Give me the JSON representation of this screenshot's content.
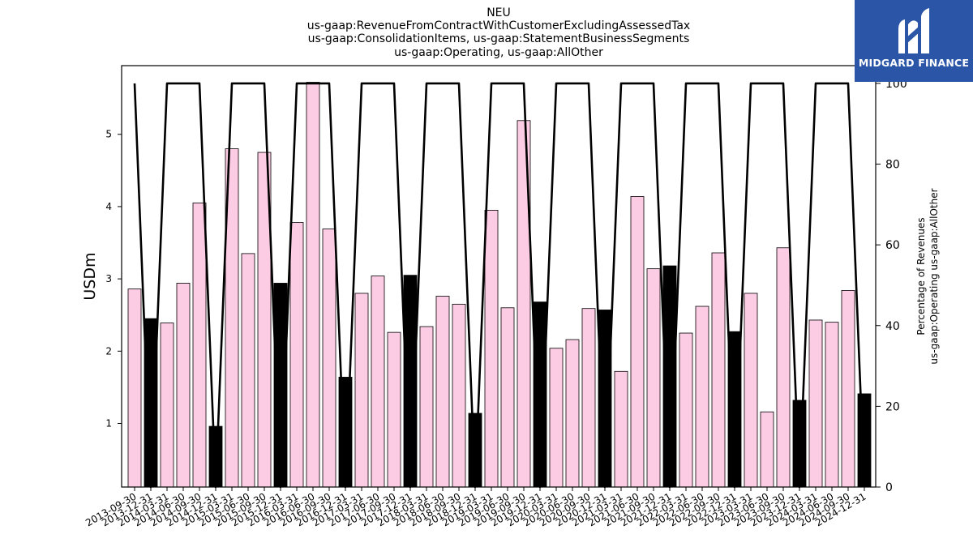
{
  "chart_data": {
    "type": "bar",
    "title_lines": [
      "NEU",
      "us-gaap:RevenueFromContractWithCustomerExcludingAssessedTax",
      "us-gaap:ConsolidationItems, us-gaap:StatementBusinessSegments",
      "us-gaap:Operating, us-gaap:AllOther"
    ],
    "ylabel": "USDm",
    "ylabel_right": [
      "Percentage of Revenues",
      "us-gaap:Operating us-gaap:AllOther"
    ],
    "ylim": [
      0.12,
      5.95
    ],
    "yticks": [
      1,
      2,
      3,
      4,
      5
    ],
    "ylim_right": [
      0,
      104.4
    ],
    "yticks_right": [
      0,
      20,
      40,
      60,
      80,
      100
    ],
    "categories": [
      "2013-09-30",
      "2013-12-31",
      "2014-03-31",
      "2014-06-30",
      "2014-09-30",
      "2014-12-31",
      "2015-03-31",
      "2015-06-30",
      "2015-09-30",
      "2015-12-31",
      "2016-03-31",
      "2016-06-30",
      "2016-09-30",
      "2016-12-31",
      "2017-03-31",
      "2017-06-30",
      "2017-09-30",
      "2017-12-31",
      "2018-03-31",
      "2018-06-30",
      "2018-09-30",
      "2018-12-31",
      "2019-03-31",
      "2019-06-30",
      "2019-09-30",
      "2019-12-31",
      "2020-03-31",
      "2020-06-30",
      "2020-09-30",
      "2020-12-31",
      "2021-03-31",
      "2021-06-30",
      "2021-09-30",
      "2021-12-31",
      "2022-03-31",
      "2022-06-30",
      "2022-09-30",
      "2022-12-31",
      "2023-03-31",
      "2023-06-30",
      "2023-09-30",
      "2023-12-31",
      "2024-03-31",
      "2024-06-30",
      "2024-09-30",
      "2024-12-31"
    ],
    "values": [
      2.86,
      2.45,
      2.39,
      2.94,
      4.05,
      0.96,
      4.8,
      3.35,
      4.75,
      2.94,
      3.78,
      5.72,
      3.69,
      1.64,
      2.8,
      3.04,
      2.26,
      3.05,
      2.34,
      2.76,
      2.65,
      1.14,
      3.95,
      2.6,
      5.19,
      2.68,
      2.04,
      2.16,
      2.59,
      2.57,
      1.72,
      4.14,
      3.14,
      3.18,
      2.25,
      2.62,
      3.36,
      2.27,
      2.8,
      1.16,
      3.43,
      1.32,
      2.43,
      2.4,
      2.84,
      1.41
    ],
    "bar_kind": [
      "pink",
      "black",
      "pink",
      "pink",
      "pink",
      "black",
      "pink",
      "pink",
      "pink",
      "black",
      "pink",
      "pink",
      "pink",
      "black",
      "pink",
      "pink",
      "pink",
      "black",
      "pink",
      "pink",
      "pink",
      "black",
      "pink",
      "pink",
      "pink",
      "black",
      "pink",
      "pink",
      "pink",
      "black",
      "pink",
      "pink",
      "pink",
      "black",
      "pink",
      "pink",
      "pink",
      "black",
      "pink",
      "pink",
      "pink",
      "black",
      "pink",
      "pink",
      "pink",
      "black"
    ],
    "percent_line": [
      100,
      0,
      100,
      100,
      100,
      0,
      100,
      100,
      100,
      0,
      100,
      100,
      100,
      0,
      100,
      100,
      100,
      0,
      100,
      100,
      100,
      0,
      100,
      100,
      100,
      0,
      100,
      100,
      100,
      0,
      100,
      100,
      100,
      0,
      100,
      100,
      100,
      0,
      100,
      100,
      100,
      0,
      100,
      100,
      100,
      0
    ],
    "colors": {
      "pink": "#fccce4",
      "black": "#000000",
      "line": "#000000"
    }
  },
  "logo": {
    "text": "MIDGARD FINANCE",
    "bg": "#2b56a8"
  }
}
